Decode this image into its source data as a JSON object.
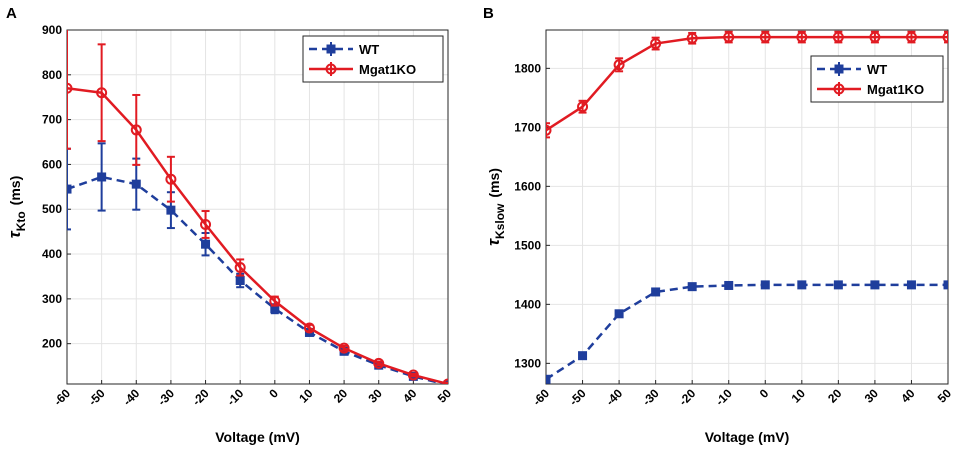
{
  "chart_data": [
    {
      "panel": "A",
      "type": "line",
      "xlabel": "Voltage (mV)",
      "ylabel_symbol": "τ",
      "ylabel_sub": "Kto",
      "ylabel_unit": "(ms)",
      "x": [
        -60,
        -50,
        -40,
        -30,
        -20,
        -10,
        0,
        10,
        20,
        30,
        40,
        50
      ],
      "xlim": [
        -60,
        50
      ],
      "ylim": [
        110,
        900
      ],
      "xticks": [
        "-60",
        "-50",
        "-40",
        "-30",
        "-20",
        "-10",
        "0",
        "10",
        "20",
        "30",
        "40",
        "50"
      ],
      "yticks": [
        "200",
        "300",
        "400",
        "500",
        "600",
        "700",
        "800",
        "900"
      ],
      "ytick_values": [
        200,
        300,
        400,
        500,
        600,
        700,
        800,
        900
      ],
      "grid": true,
      "legend_position": "top-right",
      "series": [
        {
          "name": "WT",
          "color": "#1f3e9c",
          "style": "dashed",
          "marker": "square",
          "values": [
            545,
            572,
            556,
            498,
            422,
            341,
            278,
            225,
            183,
            152,
            127,
            108
          ],
          "err": [
            90,
            75,
            57,
            40,
            25,
            15,
            10,
            6,
            5,
            4,
            3,
            3
          ]
        },
        {
          "name": "Mgat1KO",
          "color": "#e11b22",
          "style": "solid",
          "marker": "circle",
          "values": [
            770,
            760,
            677,
            567,
            466,
            370,
            295,
            235,
            190,
            156,
            130,
            110
          ],
          "err": [
            135,
            108,
            78,
            50,
            30,
            18,
            10,
            7,
            5,
            4,
            3,
            3
          ]
        }
      ]
    },
    {
      "panel": "B",
      "type": "line",
      "xlabel": "Voltage (mV)",
      "ylabel_symbol": "τ",
      "ylabel_sub": "Kslow",
      "ylabel_unit": "(ms)",
      "x": [
        -60,
        -50,
        -40,
        -30,
        -20,
        -10,
        0,
        10,
        20,
        30,
        40,
        50
      ],
      "xlim": [
        -60,
        50
      ],
      "ylim": [
        1265,
        1865
      ],
      "xticks": [
        "-60",
        "-50",
        "-40",
        "-30",
        "-20",
        "-10",
        "0",
        "10",
        "20",
        "30",
        "40",
        "50"
      ],
      "yticks": [
        "1300",
        "1400",
        "1500",
        "1600",
        "1700",
        "1800"
      ],
      "ytick_values": [
        1300,
        1400,
        1500,
        1600,
        1700,
        1800
      ],
      "grid": true,
      "legend_position": "top-right",
      "series": [
        {
          "name": "WT",
          "color": "#1f3e9c",
          "style": "dashed",
          "marker": "square",
          "values": [
            1273,
            1313,
            1384,
            1421,
            1430,
            1432,
            1433,
            1433,
            1433,
            1433,
            1433,
            1433
          ],
          "err": [
            3,
            3,
            3,
            3,
            3,
            3,
            3,
            3,
            3,
            3,
            3,
            3
          ]
        },
        {
          "name": "Mgat1KO",
          "color": "#e11b22",
          "style": "solid",
          "marker": "circle",
          "values": [
            1695,
            1735,
            1806,
            1842,
            1851,
            1853,
            1853,
            1853,
            1853,
            1853,
            1853,
            1853
          ],
          "err": [
            12,
            10,
            11,
            10,
            9,
            9,
            9,
            9,
            9,
            9,
            9,
            9
          ]
        }
      ]
    }
  ]
}
